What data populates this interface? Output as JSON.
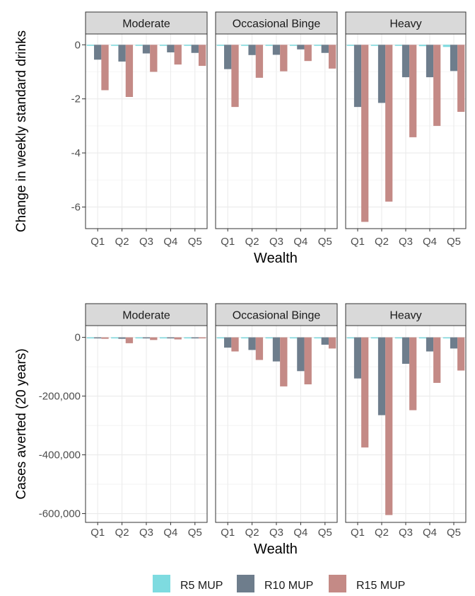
{
  "chart_data": [
    {
      "type": "bar",
      "facets": [
        "Moderate",
        "Occasional Binge",
        "Heavy"
      ],
      "categories": [
        "Q1",
        "Q2",
        "Q3",
        "Q4",
        "Q5"
      ],
      "xlabel": "Wealth",
      "ylabel": "Change in weekly standard drinks",
      "ylim": [
        -6.8,
        0.4
      ],
      "yticks": [
        0,
        -2,
        -4,
        -6
      ],
      "ytick_labels": [
        "0",
        "-2",
        "-4",
        "-6"
      ],
      "grid": true,
      "series_values": {
        "Moderate": [
          [
            -0.02,
            -0.02,
            -0.02,
            -0.02,
            -0.02
          ],
          [
            -0.55,
            -0.62,
            -0.32,
            -0.28,
            -0.3
          ],
          [
            -1.68,
            -1.93,
            -1.0,
            -0.73,
            -0.78
          ]
        ],
        "Occasional Binge": [
          [
            -0.03,
            -0.03,
            -0.03,
            -0.03,
            -0.03
          ],
          [
            -0.9,
            -0.38,
            -0.37,
            -0.17,
            -0.3
          ],
          [
            -2.3,
            -1.22,
            -0.98,
            -0.6,
            -0.88
          ]
        ],
        "Heavy": [
          [
            -0.04,
            -0.04,
            -0.04,
            -0.05,
            -0.08
          ],
          [
            -2.3,
            -2.15,
            -1.2,
            -1.2,
            -0.97
          ],
          [
            -6.55,
            -5.8,
            -3.42,
            -3.0,
            -2.48
          ]
        ]
      }
    },
    {
      "type": "bar",
      "facets": [
        "Moderate",
        "Occasional Binge",
        "Heavy"
      ],
      "categories": [
        "Q1",
        "Q2",
        "Q3",
        "Q4",
        "Q5"
      ],
      "xlabel": "Wealth",
      "ylabel": "Cases averted (20 years)",
      "ylim": [
        -630000,
        40000
      ],
      "yticks": [
        0,
        -200000,
        -400000,
        -600000
      ],
      "ytick_labels": [
        "0",
        "-200,000",
        "-400,000",
        "-600,000"
      ],
      "grid": true,
      "series_values": {
        "Moderate": [
          [
            0,
            0,
            0,
            0,
            0
          ],
          [
            -2000,
            -5000,
            -3000,
            -2000,
            -1000
          ],
          [
            -5000,
            -20000,
            -9000,
            -7000,
            -3000
          ]
        ],
        "Occasional Binge": [
          [
            0,
            0,
            0,
            0,
            0
          ],
          [
            -35000,
            -43000,
            -82000,
            -115000,
            -25000
          ],
          [
            -48000,
            -77000,
            -167000,
            -160000,
            -38000
          ]
        ],
        "Heavy": [
          [
            0,
            0,
            0,
            0,
            0
          ],
          [
            -140000,
            -265000,
            -90000,
            -48000,
            -38000
          ],
          [
            -375000,
            -605000,
            -248000,
            -155000,
            -113000
          ]
        ]
      }
    }
  ],
  "legend": {
    "placement": "bottom",
    "items": [
      {
        "name": "R5 MUP",
        "color": "#7edbe0"
      },
      {
        "name": "R10 MUP",
        "color": "#6e7d8c"
      },
      {
        "name": "R15 MUP",
        "color": "#c48a86"
      }
    ]
  }
}
